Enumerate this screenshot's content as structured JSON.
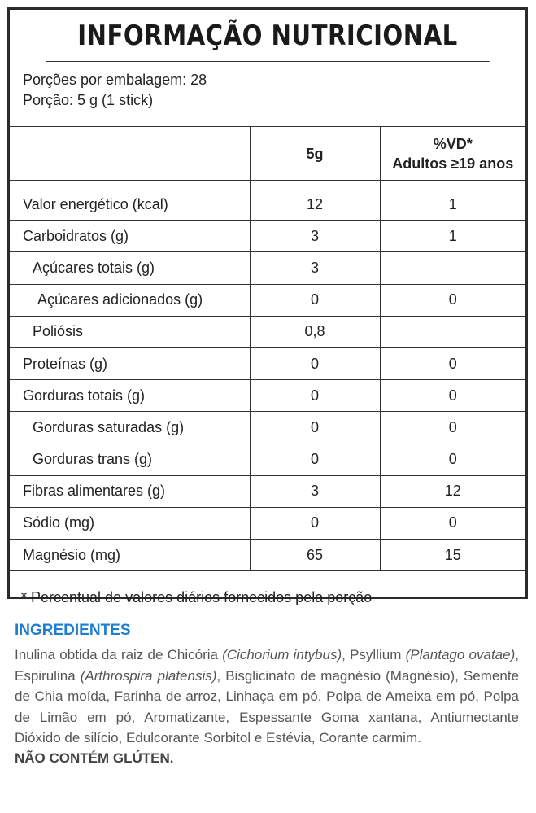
{
  "title": "INFORMAÇÃO NUTRICIONAL",
  "servings": {
    "per_package": "Porções por embalagem: 28",
    "portion": "Porção: 5 g (1 stick)"
  },
  "table": {
    "header": {
      "c1": "",
      "c2": "5g",
      "c3_line1": "%VD*",
      "c3_line2": "Adultos ≥19 anos"
    },
    "rows": [
      {
        "label": "Valor energético (kcal)",
        "amount": "12",
        "vd": "1"
      },
      {
        "label": "Carboidratos (g)",
        "amount": "3",
        "vd": "1"
      },
      {
        "label": "Açúcares totais (g)",
        "amount": "3",
        "vd": ""
      },
      {
        "label": "Açúcares adicionados (g)",
        "amount": "0",
        "vd": "0"
      },
      {
        "label": "Poliósis",
        "amount": "0,8",
        "vd": ""
      },
      {
        "label": "Proteínas (g)",
        "amount": "0",
        "vd": "0"
      },
      {
        "label": "Gorduras totais (g)",
        "amount": "0",
        "vd": "0"
      },
      {
        "label": "Gorduras saturadas (g)",
        "amount": "0",
        "vd": "0"
      },
      {
        "label": "Gorduras trans (g)",
        "amount": "0",
        "vd": "0"
      },
      {
        "label": "Fibras alimentares (g)",
        "amount": "3",
        "vd": "12"
      },
      {
        "label": "Sódio (mg)",
        "amount": "0",
        "vd": "0"
      },
      {
        "label": "Magnésio (mg)",
        "amount": "65",
        "vd": "15"
      }
    ]
  },
  "footnote": "* Percentual de valores diários fornecidos pela porção",
  "ingredients": {
    "heading": "INGREDIENTES",
    "parts": [
      "Inulina obtida da raiz de Chicória ",
      "(Cichorium intybus)",
      ", Psyllium ",
      "(Plantago ovatae)",
      ", Espirulina ",
      "(Arthrospira platensis)",
      ", Bisglicinato de magnésio (Magnésio), Semente de Chia moída, Farinha de arroz, Linhaça em pó, Polpa de Ameixa em pó, Polpa de Limão em pó, Aromatizante, Espessante Goma xantana, Antiumectante Dióxido de silício, Edulcorante Sorbitol e Estévia, Corante carmim."
    ],
    "gluten": "NÃO CONTÉM GLÚTEN."
  }
}
